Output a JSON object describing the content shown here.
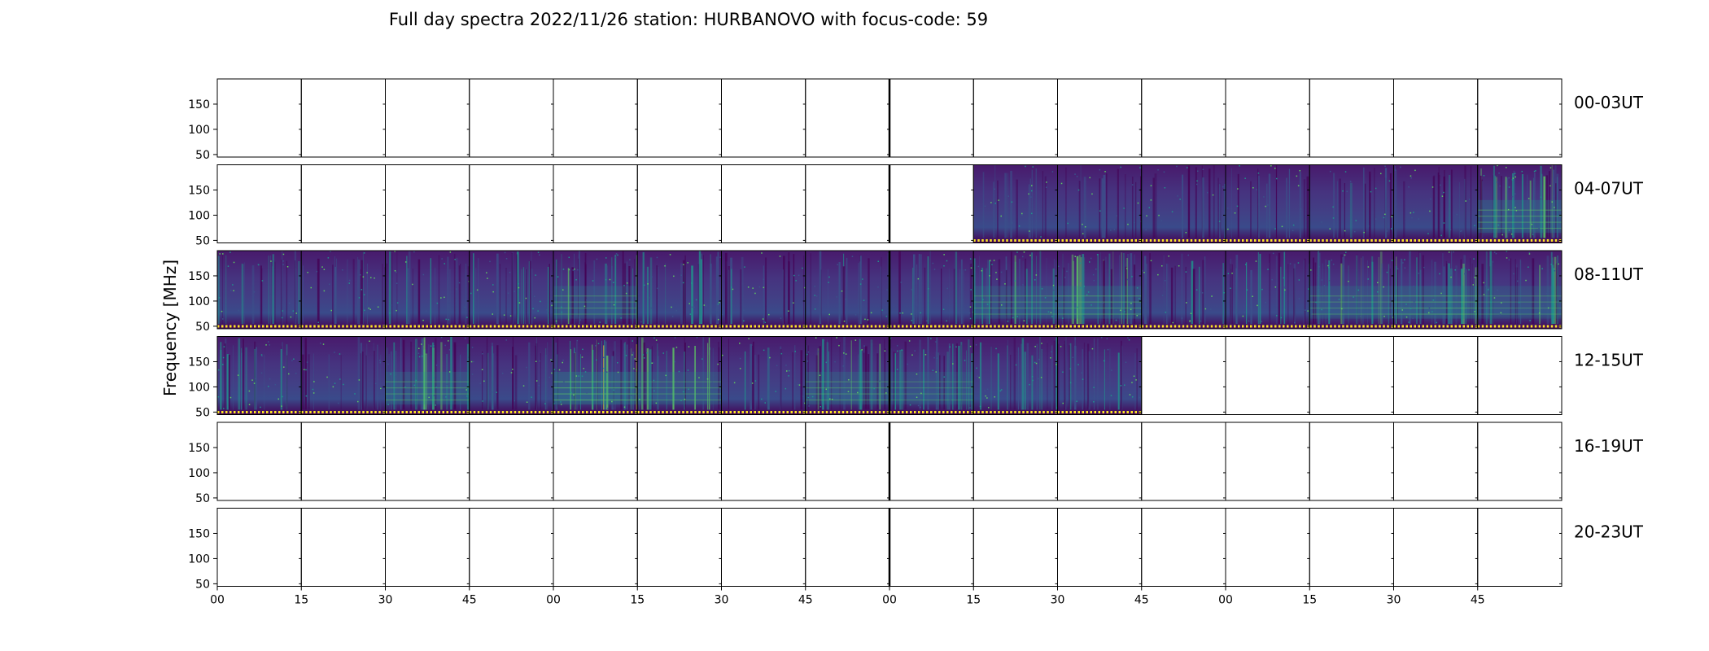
{
  "chart_data": {
    "type": "heatmap",
    "title": "Full day spectra 2022/11/26 station: HURBANOVO with focus-code: 59",
    "ylabel": "Frequency [MHz]",
    "xlabel": "",
    "y_ticks": [
      50,
      100,
      150
    ],
    "y_range": [
      45,
      200
    ],
    "x_ticks": [
      "00",
      "15",
      "30",
      "45",
      "00",
      "15",
      "30",
      "45",
      "00",
      "15",
      "30",
      "45",
      "00",
      "15",
      "30",
      "45"
    ],
    "rows": [
      {
        "label": "00-03UT",
        "segments": [
          {
            "panel": 0,
            "has_data": false,
            "intensity": 0
          },
          {
            "panel": 1,
            "has_data": false,
            "intensity": 0
          },
          {
            "panel": 2,
            "has_data": false,
            "intensity": 0
          },
          {
            "panel": 3,
            "has_data": false,
            "intensity": 0
          },
          {
            "panel": 4,
            "has_data": false,
            "intensity": 0
          },
          {
            "panel": 5,
            "has_data": false,
            "intensity": 0
          },
          {
            "panel": 6,
            "has_data": false,
            "intensity": 0
          },
          {
            "panel": 7,
            "has_data": false,
            "intensity": 0
          },
          {
            "panel": 8,
            "has_data": false,
            "intensity": 0
          },
          {
            "panel": 9,
            "has_data": false,
            "intensity": 0
          },
          {
            "panel": 10,
            "has_data": false,
            "intensity": 0
          },
          {
            "panel": 11,
            "has_data": false,
            "intensity": 0
          },
          {
            "panel": 12,
            "has_data": false,
            "intensity": 0
          },
          {
            "panel": 13,
            "has_data": false,
            "intensity": 0
          },
          {
            "panel": 14,
            "has_data": false,
            "intensity": 0
          },
          {
            "panel": 15,
            "has_data": false,
            "intensity": 0
          }
        ]
      },
      {
        "label": "04-07UT",
        "segments": [
          {
            "panel": 0,
            "has_data": false,
            "intensity": 0
          },
          {
            "panel": 1,
            "has_data": false,
            "intensity": 0
          },
          {
            "panel": 2,
            "has_data": false,
            "intensity": 0
          },
          {
            "panel": 3,
            "has_data": false,
            "intensity": 0
          },
          {
            "panel": 4,
            "has_data": false,
            "intensity": 0
          },
          {
            "panel": 5,
            "has_data": false,
            "intensity": 0
          },
          {
            "panel": 6,
            "has_data": false,
            "intensity": 0
          },
          {
            "panel": 7,
            "has_data": false,
            "intensity": 0
          },
          {
            "panel": 8,
            "has_data": false,
            "intensity": 0
          },
          {
            "panel": 9,
            "has_data": true,
            "intensity": 0.15
          },
          {
            "panel": 10,
            "has_data": true,
            "intensity": 0.12
          },
          {
            "panel": 11,
            "has_data": true,
            "intensity": 0.12
          },
          {
            "panel": 12,
            "has_data": true,
            "intensity": 0.12
          },
          {
            "panel": 13,
            "has_data": true,
            "intensity": 0.15
          },
          {
            "panel": 14,
            "has_data": true,
            "intensity": 0.2
          },
          {
            "panel": 15,
            "has_data": true,
            "intensity": 0.55
          }
        ]
      },
      {
        "label": "08-11UT",
        "segments": [
          {
            "panel": 0,
            "has_data": true,
            "intensity": 0.3
          },
          {
            "panel": 1,
            "has_data": true,
            "intensity": 0.25
          },
          {
            "panel": 2,
            "has_data": true,
            "intensity": 0.3
          },
          {
            "panel": 3,
            "has_data": true,
            "intensity": 0.35
          },
          {
            "panel": 4,
            "has_data": true,
            "intensity": 0.45
          },
          {
            "panel": 5,
            "has_data": true,
            "intensity": 0.35
          },
          {
            "panel": 6,
            "has_data": true,
            "intensity": 0.2
          },
          {
            "panel": 7,
            "has_data": true,
            "intensity": 0.2
          },
          {
            "panel": 8,
            "has_data": true,
            "intensity": 0.25
          },
          {
            "panel": 9,
            "has_data": true,
            "intensity": 0.45
          },
          {
            "panel": 10,
            "has_data": true,
            "intensity": 0.55
          },
          {
            "panel": 11,
            "has_data": true,
            "intensity": 0.25
          },
          {
            "panel": 12,
            "has_data": true,
            "intensity": 0.35
          },
          {
            "panel": 13,
            "has_data": true,
            "intensity": 0.45
          },
          {
            "panel": 14,
            "has_data": true,
            "intensity": 0.6
          },
          {
            "panel": 15,
            "has_data": true,
            "intensity": 0.4
          }
        ]
      },
      {
        "label": "12-15UT",
        "segments": [
          {
            "panel": 0,
            "has_data": true,
            "intensity": 0.35
          },
          {
            "panel": 1,
            "has_data": true,
            "intensity": 0.2
          },
          {
            "panel": 2,
            "has_data": true,
            "intensity": 0.5
          },
          {
            "panel": 3,
            "has_data": true,
            "intensity": 0.3
          },
          {
            "panel": 4,
            "has_data": true,
            "intensity": 0.7
          },
          {
            "panel": 5,
            "has_data": true,
            "intensity": 0.45
          },
          {
            "panel": 6,
            "has_data": true,
            "intensity": 0.15
          },
          {
            "panel": 7,
            "has_data": true,
            "intensity": 0.5
          },
          {
            "panel": 8,
            "has_data": true,
            "intensity": 0.4
          },
          {
            "panel": 9,
            "has_data": true,
            "intensity": 0.3
          },
          {
            "panel": 10,
            "has_data": true,
            "intensity": 0.35
          },
          {
            "panel": 11,
            "has_data": false,
            "intensity": 0
          },
          {
            "panel": 12,
            "has_data": false,
            "intensity": 0
          },
          {
            "panel": 13,
            "has_data": false,
            "intensity": 0
          },
          {
            "panel": 14,
            "has_data": false,
            "intensity": 0
          },
          {
            "panel": 15,
            "has_data": false,
            "intensity": 0
          }
        ]
      },
      {
        "label": "16-19UT",
        "segments": [
          {
            "panel": 0,
            "has_data": false,
            "intensity": 0
          },
          {
            "panel": 1,
            "has_data": false,
            "intensity": 0
          },
          {
            "panel": 2,
            "has_data": false,
            "intensity": 0
          },
          {
            "panel": 3,
            "has_data": false,
            "intensity": 0
          },
          {
            "panel": 4,
            "has_data": false,
            "intensity": 0
          },
          {
            "panel": 5,
            "has_data": false,
            "intensity": 0
          },
          {
            "panel": 6,
            "has_data": false,
            "intensity": 0
          },
          {
            "panel": 7,
            "has_data": false,
            "intensity": 0
          },
          {
            "panel": 8,
            "has_data": false,
            "intensity": 0
          },
          {
            "panel": 9,
            "has_data": false,
            "intensity": 0
          },
          {
            "panel": 10,
            "has_data": false,
            "intensity": 0
          },
          {
            "panel": 11,
            "has_data": false,
            "intensity": 0
          },
          {
            "panel": 12,
            "has_data": false,
            "intensity": 0
          },
          {
            "panel": 13,
            "has_data": false,
            "intensity": 0
          },
          {
            "panel": 14,
            "has_data": false,
            "intensity": 0
          },
          {
            "panel": 15,
            "has_data": false,
            "intensity": 0
          }
        ]
      },
      {
        "label": "20-23UT",
        "segments": [
          {
            "panel": 0,
            "has_data": false,
            "intensity": 0
          },
          {
            "panel": 1,
            "has_data": false,
            "intensity": 0
          },
          {
            "panel": 2,
            "has_data": false,
            "intensity": 0
          },
          {
            "panel": 3,
            "has_data": false,
            "intensity": 0
          },
          {
            "panel": 4,
            "has_data": false,
            "intensity": 0
          },
          {
            "panel": 5,
            "has_data": false,
            "intensity": 0
          },
          {
            "panel": 6,
            "has_data": false,
            "intensity": 0
          },
          {
            "panel": 7,
            "has_data": false,
            "intensity": 0
          },
          {
            "panel": 8,
            "has_data": false,
            "intensity": 0
          },
          {
            "panel": 9,
            "has_data": false,
            "intensity": 0
          },
          {
            "panel": 10,
            "has_data": false,
            "intensity": 0
          },
          {
            "panel": 11,
            "has_data": false,
            "intensity": 0
          },
          {
            "panel": 12,
            "has_data": false,
            "intensity": 0
          },
          {
            "panel": 13,
            "has_data": false,
            "intensity": 0
          },
          {
            "panel": 14,
            "has_data": false,
            "intensity": 0
          },
          {
            "panel": 15,
            "has_data": false,
            "intensity": 0
          }
        ]
      }
    ],
    "colormap": [
      "#440154",
      "#3b528b",
      "#21918c",
      "#5ec962",
      "#fde725"
    ],
    "grid": false
  }
}
